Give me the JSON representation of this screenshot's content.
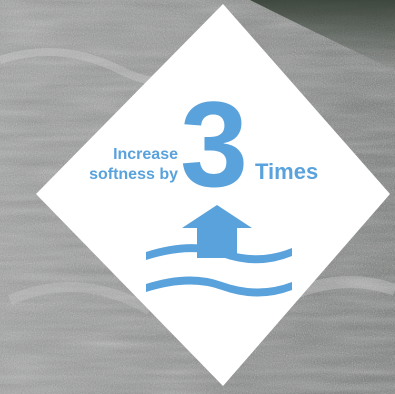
{
  "badge": {
    "line1": "Increase",
    "line2": "softness by",
    "number": "3",
    "suffix": "Times"
  },
  "colors": {
    "accent": "#5aa2dc",
    "diamond": "#ffffff",
    "background": "#8a8d8c"
  },
  "icons": {
    "arrow": "up-arrow-icon",
    "waves": "waves-icon"
  }
}
